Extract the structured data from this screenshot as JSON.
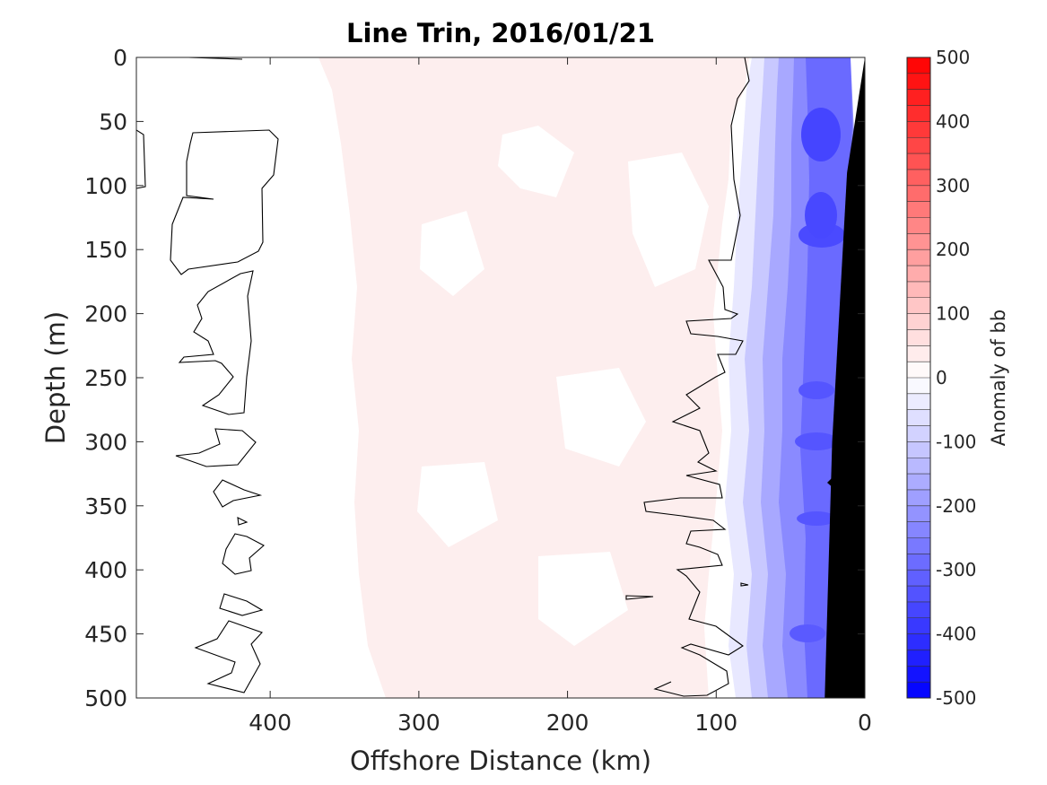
{
  "chart_data": {
    "type": "heatmap",
    "title": "Line Trin, 2016/01/21",
    "xlabel": "Offshore Distance (km)",
    "ylabel": "Depth (m)",
    "xlim": [
      490,
      0
    ],
    "ylim": [
      0,
      500
    ],
    "x_ticks": [
      400,
      300,
      200,
      100,
      0
    ],
    "y_ticks": [
      0,
      50,
      100,
      150,
      200,
      250,
      300,
      350,
      400,
      450,
      500
    ],
    "colorbar": {
      "label": "Anomaly of bb",
      "range": [
        -500,
        500
      ],
      "ticks": [
        500,
        400,
        300,
        200,
        100,
        0,
        -100,
        -200,
        -300,
        -400,
        -500
      ],
      "levels": 40,
      "color_min": "#0000ff",
      "color_mid": "#ffffff",
      "color_max": "#ff0000"
    },
    "zero_contour": true,
    "bathymetry_color": "#000000",
    "bathymetry": [
      {
        "x": 0,
        "depth": 0
      },
      {
        "x": 12,
        "depth": 90
      },
      {
        "x": 22,
        "depth": 300
      },
      {
        "x": 27,
        "depth": 500
      }
    ]
  },
  "annotations": {
    "note": ""
  }
}
